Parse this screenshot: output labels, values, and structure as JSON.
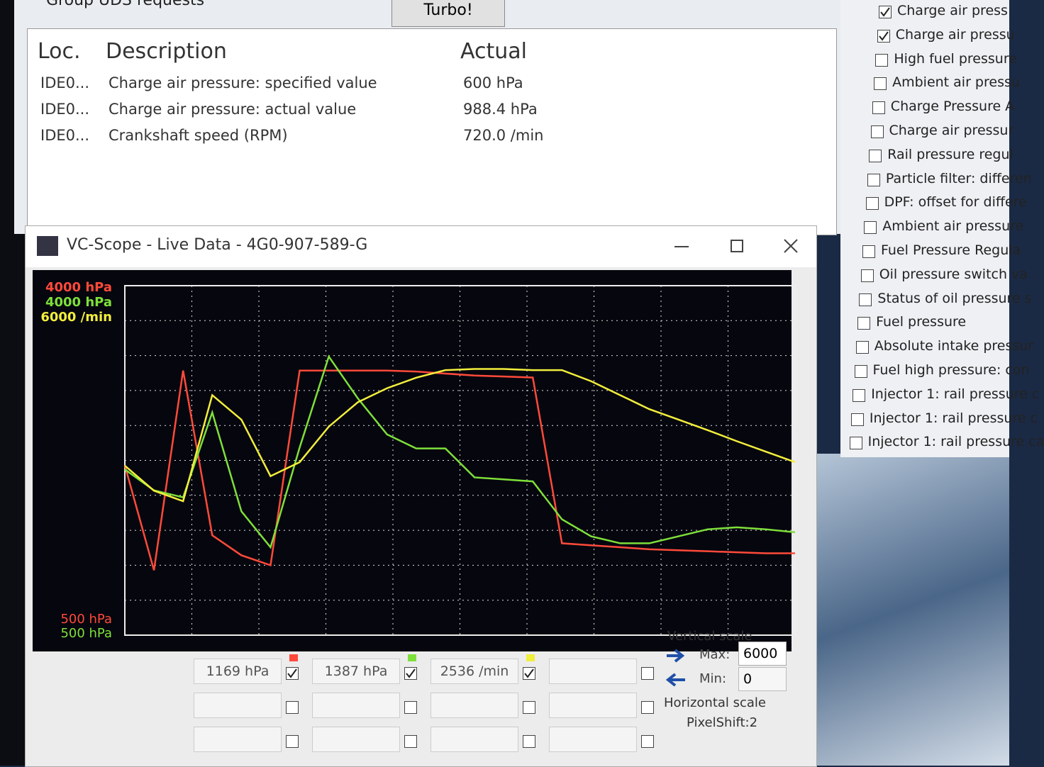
{
  "top_bar": {
    "checkbox_label": "Group UDS requests",
    "button": "Turbo!"
  },
  "table": {
    "headers": [
      "Loc.",
      "Description",
      "Actual"
    ],
    "rows": [
      [
        "IDE0...",
        "Charge air pressure: specified value",
        "600 hPa"
      ],
      [
        "IDE0...",
        "Charge air pressure: actual value",
        "988.4 hPa"
      ],
      [
        "IDE0...",
        "Crankshaft speed (RPM)",
        "720.0 /min"
      ]
    ]
  },
  "signal_list": [
    {
      "label": "Charge air press",
      "checked": true
    },
    {
      "label": "Charge air pressu",
      "checked": true
    },
    {
      "label": "High fuel pressure",
      "checked": false
    },
    {
      "label": "Ambient air pressu",
      "checked": false
    },
    {
      "label": "Charge Pressure A",
      "checked": false
    },
    {
      "label": "Charge air pressur",
      "checked": false
    },
    {
      "label": "Rail pressure regul",
      "checked": false
    },
    {
      "label": "Particle filter: differen",
      "checked": false
    },
    {
      "label": "DPF: offset for differe",
      "checked": false
    },
    {
      "label": "Ambient air pressure",
      "checked": false
    },
    {
      "label": "Fuel Pressure Regula",
      "checked": false
    },
    {
      "label": "Oil pressure switch va",
      "checked": false
    },
    {
      "label": "Status of oil pressure s",
      "checked": false
    },
    {
      "label": "Fuel pressure",
      "checked": false
    },
    {
      "label": "Absolute intake pressur",
      "checked": false
    },
    {
      "label": "Fuel high pressure: con",
      "checked": false
    },
    {
      "label": "Injector 1: rail pressure c",
      "checked": false
    },
    {
      "label": "Injector 1: rail pressure c",
      "checked": false
    },
    {
      "label": "Injector 1: rail pressure ca",
      "checked": false
    }
  ],
  "scope": {
    "title": "VC-Scope  -  Live Data  -  4G0-907-589-G",
    "series": [
      {
        "color": "#ff4a3a",
        "ylim": [
          500,
          4000
        ],
        "top_label": "4000 hPa",
        "bottom_label": "500 hPa",
        "values": [
          2200,
          1150,
          3150,
          1500,
          1300,
          1200,
          3150,
          3150,
          3150,
          3150,
          3140,
          3120,
          3100,
          3090,
          3080,
          1420,
          1400,
          1380,
          1360,
          1350,
          1340,
          1330,
          1320,
          1320
        ]
      },
      {
        "color": "#7ee03a",
        "ylim": [
          500,
          4000
        ],
        "top_label": "4000 hPa",
        "bottom_label": "500 hPa",
        "values": [
          2160,
          1950,
          1880,
          2730,
          1740,
          1380,
          2380,
          3290,
          2870,
          2510,
          2370,
          2370,
          2080,
          2060,
          2040,
          1660,
          1490,
          1420,
          1420,
          1490,
          1560,
          1580,
          1560,
          1530
        ]
      },
      {
        "color": "#f2ee3c",
        "ylim": [
          0,
          6000
        ],
        "top_label": "6000 /min",
        "values": [
          2910,
          2480,
          2300,
          4120,
          3700,
          2730,
          2970,
          3580,
          4000,
          4240,
          4420,
          4550,
          4570,
          4570,
          4550,
          4550,
          4360,
          4120,
          3880,
          3700,
          3520,
          3330,
          3150,
          2970
        ]
      }
    ],
    "readouts": [
      "1169 hPa",
      "1387 hPa",
      "2536 /min"
    ],
    "vertical_scale": {
      "title": "Vertical scale",
      "max_label": "Max:",
      "max": "6000",
      "min_label": "Min:",
      "min": "0"
    },
    "horizontal_scale": {
      "title": "Horizontal scale",
      "mode": "PixelShift:2"
    }
  }
}
